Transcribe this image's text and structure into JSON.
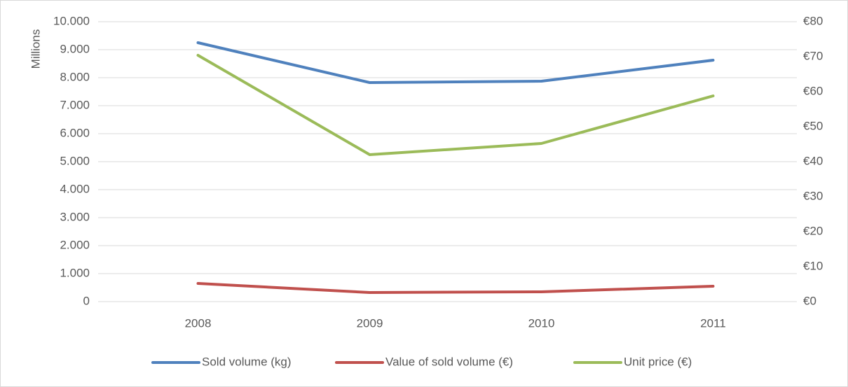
{
  "chart_data": {
    "type": "line",
    "y_label": "Millions",
    "categories": [
      "2008",
      "2009",
      "2010",
      "2011"
    ],
    "series": [
      {
        "name": "Sold volume (kg)",
        "color": "#4f81bd",
        "values": [
          9250,
          7825,
          7875,
          8625
        ]
      },
      {
        "name": "Value of sold volume (€)",
        "color": "#c0504d",
        "values": [
          650,
          325,
          350,
          550
        ]
      },
      {
        "name": "Unit price (€)",
        "color": "#9bbb59",
        "axis": "y2",
        "values": [
          70.4,
          42.0,
          45.2,
          58.8
        ]
      }
    ],
    "ylim": [
      0,
      10000
    ],
    "yticks": [
      0,
      {
        "value": 1000,
        "label": "1.000"
      },
      {
        "value": 2000,
        "label": "2.000"
      },
      {
        "value": 3000,
        "label": "3.000"
      },
      {
        "value": 4000,
        "label": "4.000"
      },
      {
        "value": 5000,
        "label": "5.000"
      },
      {
        "value": 6000,
        "label": "6.000"
      },
      {
        "value": 7000,
        "label": "7.000"
      },
      {
        "value": 8000,
        "label": "8.000"
      },
      {
        "value": 9000,
        "label": "9.000"
      },
      {
        "value": 10000,
        "label": "10.000"
      }
    ],
    "y2lim": [
      0,
      80
    ],
    "y2ticks": [
      {
        "value": 0,
        "label": "€0"
      },
      {
        "value": 10,
        "label": "€10"
      },
      {
        "value": 20,
        "label": "€20"
      },
      {
        "value": 30,
        "label": "€30"
      },
      {
        "value": 40,
        "label": "€40"
      },
      {
        "value": 50,
        "label": "€50"
      },
      {
        "value": 60,
        "label": "€60"
      },
      {
        "value": 70,
        "label": "€70"
      },
      {
        "value": 80,
        "label": "€80"
      }
    ],
    "grid": true,
    "legend": "bottom"
  }
}
